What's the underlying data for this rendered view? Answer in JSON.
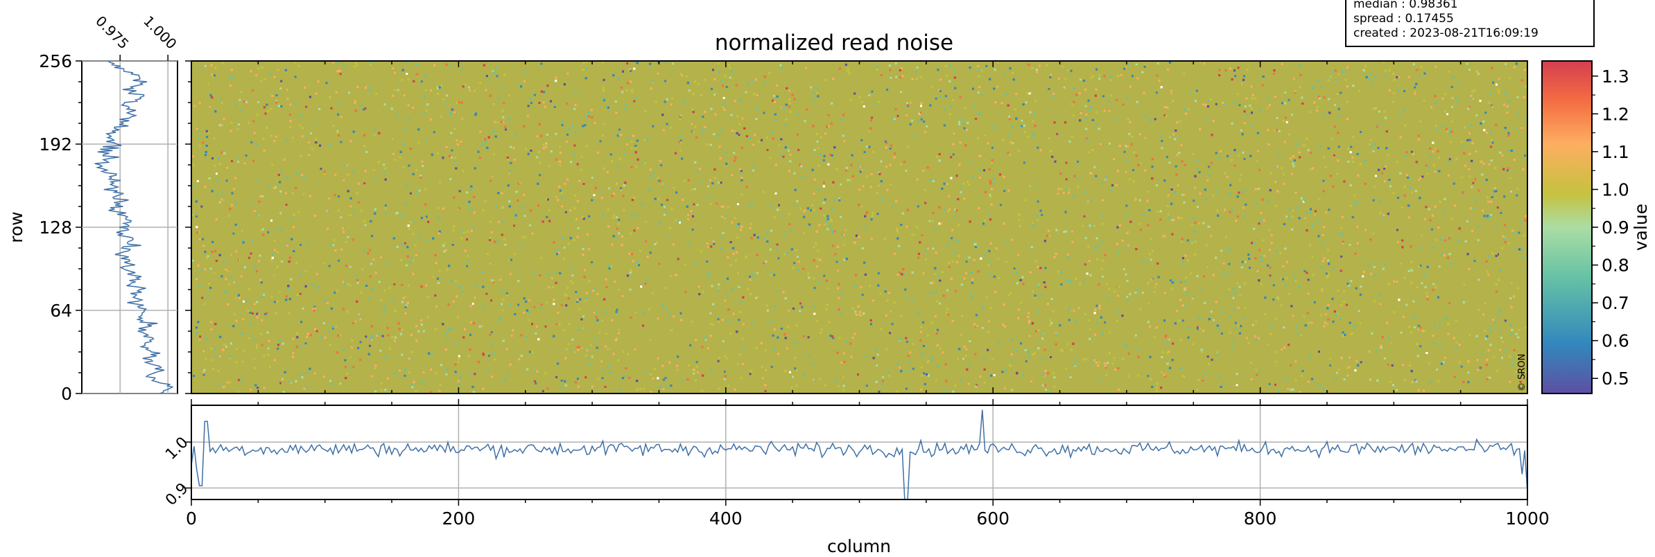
{
  "title": "normalized read noise",
  "info_box": [
    "median : 0.98361",
    "spread : 0.17455",
    "created : 2023-08-21T16:09:19"
  ],
  "watermark": "© SRON",
  "colors": {
    "line": "#3d6fa6",
    "grid": "#b0b0b0",
    "colormap": [
      "#5e4fa2",
      "#3288bd",
      "#66c2a5",
      "#abdda4",
      "#c5c23f",
      "#fdae61",
      "#f46d43",
      "#d53e4f"
    ]
  },
  "chart_data": [
    {
      "type": "heatmap",
      "title": "normalized read noise",
      "xlabel": "",
      "ylabel": "row",
      "xlim": [
        0,
        1000
      ],
      "ylim": [
        0,
        256
      ],
      "y_ticks": [
        "0",
        "64",
        "128",
        "192",
        "256"
      ],
      "colorbar": {
        "label": "value",
        "range": [
          0.46,
          1.34
        ],
        "ticks": [
          "0.5",
          "0.6",
          "0.7",
          "0.8",
          "0.9",
          "1.0",
          "1.1",
          "1.2",
          "1.3"
        ]
      },
      "value_distribution": {
        "median": 0.98361,
        "spread": 0.17455
      }
    },
    {
      "type": "line",
      "description_source": "row profile (left panel)",
      "xlim": [
        0.955,
        1.005
      ],
      "x_ticks": [
        "0.975",
        "1.000"
      ],
      "ylim": [
        0,
        256
      ],
      "profile_points": [
        [
          0,
          0.995
        ],
        [
          6,
          1.003
        ],
        [
          12,
          0.99
        ],
        [
          18,
          0.996
        ],
        [
          24,
          0.989
        ],
        [
          30,
          0.993
        ],
        [
          36,
          0.988
        ],
        [
          42,
          0.994
        ],
        [
          48,
          0.986
        ],
        [
          54,
          0.99
        ],
        [
          60,
          0.984
        ],
        [
          66,
          0.987
        ],
        [
          72,
          0.982
        ],
        [
          78,
          0.986
        ],
        [
          84,
          0.98
        ],
        [
          90,
          0.984
        ],
        [
          96,
          0.978
        ],
        [
          102,
          0.982
        ],
        [
          108,
          0.976
        ],
        [
          114,
          0.98
        ],
        [
          120,
          0.978
        ],
        [
          126,
          0.975
        ],
        [
          132,
          0.979
        ],
        [
          138,
          0.976
        ],
        [
          144,
          0.972
        ],
        [
          150,
          0.976
        ],
        [
          156,
          0.971
        ],
        [
          162,
          0.968
        ],
        [
          168,
          0.973
        ],
        [
          174,
          0.966
        ],
        [
          180,
          0.97
        ],
        [
          186,
          0.967
        ],
        [
          192,
          0.972
        ],
        [
          198,
          0.969
        ],
        [
          204,
          0.974
        ],
        [
          210,
          0.978
        ],
        [
          216,
          0.982
        ],
        [
          222,
          0.979
        ],
        [
          228,
          0.985
        ],
        [
          234,
          0.981
        ],
        [
          240,
          0.986
        ],
        [
          246,
          0.983
        ],
        [
          250,
          0.977
        ],
        [
          254,
          0.97
        ],
        [
          256,
          0.968
        ]
      ]
    },
    {
      "type": "line",
      "description_source": "column profile (bottom panel)",
      "xlabel": "column",
      "xlim": [
        0,
        1000
      ],
      "x_ticks": [
        "0",
        "200",
        "400",
        "600",
        "800",
        "1000"
      ],
      "ylim": [
        0.875,
        1.08
      ],
      "y_ticks": [
        "0.9",
        "1.0"
      ],
      "baseline": 0.985,
      "anomalies": [
        [
          0,
          0.95
        ],
        [
          4,
          0.94
        ],
        [
          7,
          0.905
        ],
        [
          11,
          1.045
        ],
        [
          535,
          0.87
        ],
        [
          592,
          1.07
        ],
        [
          996,
          0.93
        ],
        [
          1000,
          0.89
        ]
      ]
    }
  ]
}
